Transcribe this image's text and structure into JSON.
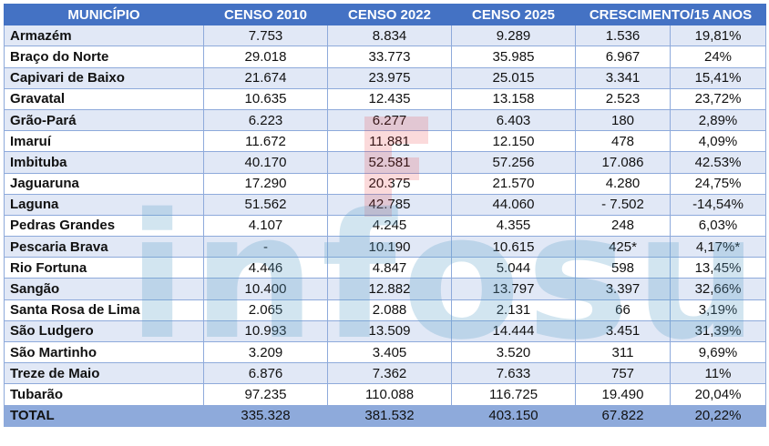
{
  "headers": [
    "MUNICÍPIO",
    "CENSO 2010",
    "CENSO 2022",
    "CENSO 2025",
    "CRESCIMENTO/15 ANOS"
  ],
  "rows": [
    {
      "municipio": "Armazém",
      "c2010": "7.753",
      "c2022": "8.834",
      "c2025": "9.289",
      "abs": "1.536",
      "pct": "19,81%"
    },
    {
      "municipio": "Braço do Norte",
      "c2010": "29.018",
      "c2022": "33.773",
      "c2025": "35.985",
      "abs": "6.967",
      "pct": "24%"
    },
    {
      "municipio": "Capivari de Baixo",
      "c2010": "21.674",
      "c2022": "23.975",
      "c2025": "25.015",
      "abs": "3.341",
      "pct": "15,41%"
    },
    {
      "municipio": "Gravatal",
      "c2010": "10.635",
      "c2022": "12.435",
      "c2025": "13.158",
      "abs": "2.523",
      "pct": "23,72%"
    },
    {
      "municipio": "Grão-Pará",
      "c2010": "6.223",
      "c2022": "6.277",
      "c2025": "6.403",
      "abs": "180",
      "pct": "2,89%"
    },
    {
      "municipio": "Imaruí",
      "c2010": "11.672",
      "c2022": "11.881",
      "c2025": "12.150",
      "abs": "478",
      "pct": "4,09%"
    },
    {
      "municipio": "Imbituba",
      "c2010": "40.170",
      "c2022": "52.581",
      "c2025": "57.256",
      "abs": "17.086",
      "pct": "42.53%"
    },
    {
      "municipio": "Jaguaruna",
      "c2010": "17.290",
      "c2022": "20.375",
      "c2025": "21.570",
      "abs": "4.280",
      "pct": "24,75%"
    },
    {
      "municipio": "Laguna",
      "c2010": "51.562",
      "c2022": "42.785",
      "c2025": "44.060",
      "abs": "- 7.502",
      "pct": "-14,54%"
    },
    {
      "municipio": "Pedras Grandes",
      "c2010": "4.107",
      "c2022": "4.245",
      "c2025": "4.355",
      "abs": "248",
      "pct": "6,03%"
    },
    {
      "municipio": "Pescaria Brava",
      "c2010": "-",
      "c2022": "10.190",
      "c2025": "10.615",
      "abs": "425*",
      "pct": "4,17%*"
    },
    {
      "municipio": "Rio Fortuna",
      "c2010": "4.446",
      "c2022": "4.847",
      "c2025": "5.044",
      "abs": "598",
      "pct": "13,45%"
    },
    {
      "municipio": "Sangão",
      "c2010": "10.400",
      "c2022": "12.882",
      "c2025": "13.797",
      "abs": "3.397",
      "pct": "32,66%"
    },
    {
      "municipio": "Santa Rosa de Lima",
      "c2010": "2.065",
      "c2022": "2.088",
      "c2025": "2.131",
      "abs": "66",
      "pct": "3,19%"
    },
    {
      "municipio": "São Ludgero",
      "c2010": "10.993",
      "c2022": "13.509",
      "c2025": "14.444",
      "abs": "3.451",
      "pct": "31,39%"
    },
    {
      "municipio": "São Martinho",
      "c2010": "3.209",
      "c2022": "3.405",
      "c2025": "3.520",
      "abs": "311",
      "pct": "9,69%"
    },
    {
      "municipio": "Treze de Maio",
      "c2010": "6.876",
      "c2022": "7.362",
      "c2025": "7.633",
      "abs": "757",
      "pct": "11%"
    },
    {
      "municipio": "Tubarão",
      "c2010": "97.235",
      "c2022": "110.088",
      "c2025": "116.725",
      "abs": "19.490",
      "pct": "20,04%"
    }
  ],
  "total": {
    "municipio": "TOTAL",
    "c2010": "335.328",
    "c2022": "381.532",
    "c2025": "403.150",
    "abs": "67.822",
    "pct": "20,22%"
  },
  "watermark": {
    "text": "infosul",
    "color": "#5fa0c8",
    "logo_color": "#e8343a"
  }
}
